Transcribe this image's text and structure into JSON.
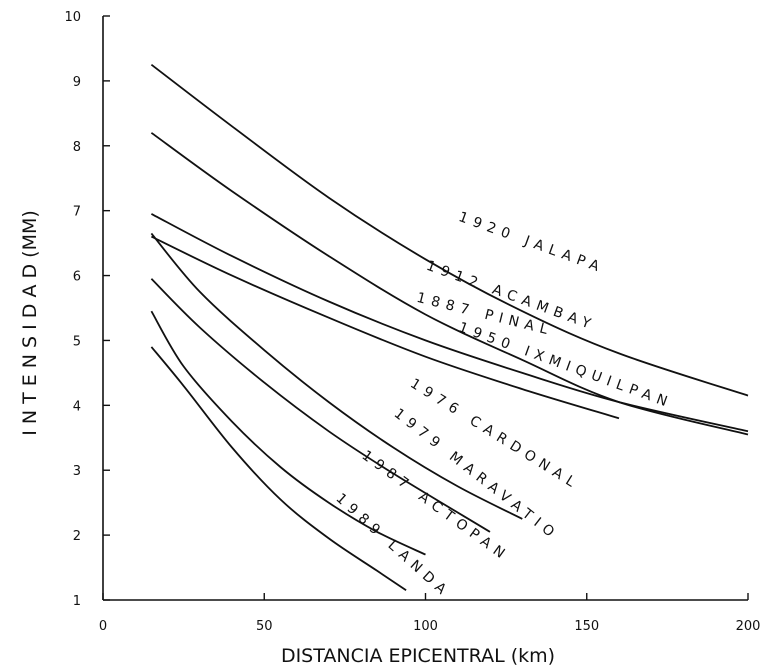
{
  "chart_data": {
    "type": "line",
    "title": "",
    "xlabel": "DISTANCIA EPICENTRAL (km)",
    "ylabel": "I N T E N S I D A D (MM)",
    "xlim": [
      0,
      200
    ],
    "ylim": [
      1,
      10
    ],
    "xticks": [
      0,
      50,
      100,
      150,
      200
    ],
    "yticks": [
      1,
      2,
      3,
      4,
      5,
      6,
      7,
      8,
      9,
      10
    ],
    "grid": false,
    "legend": "none",
    "series": [
      {
        "name": "1920 JALAPA",
        "x": [
          15,
          40,
          70,
          100,
          130,
          160,
          200
        ],
        "y": [
          9.25,
          8.3,
          7.2,
          6.25,
          5.45,
          4.8,
          4.15
        ]
      },
      {
        "name": "1912 ACAMBAY",
        "x": [
          15,
          40,
          70,
          100,
          130,
          160,
          200
        ],
        "y": [
          8.2,
          7.3,
          6.3,
          5.4,
          4.7,
          4.05,
          3.55
        ]
      },
      {
        "name": "1887 PINAL",
        "x": [
          15,
          40,
          70,
          100,
          130,
          160,
          200
        ],
        "y": [
          6.95,
          6.3,
          5.6,
          5.0,
          4.5,
          4.05,
          3.6
        ]
      },
      {
        "name": "1950 IXMIQUILPAN",
        "x": [
          15,
          40,
          70,
          100,
          130,
          160
        ],
        "y": [
          6.6,
          6.0,
          5.35,
          4.75,
          4.25,
          3.8
        ]
      },
      {
        "name": "1976 CARDONAL",
        "x": [
          15,
          30,
          50,
          70,
          90,
          110,
          130
        ],
        "y": [
          6.65,
          5.75,
          4.85,
          4.05,
          3.35,
          2.75,
          2.25
        ]
      },
      {
        "name": "1979 MARAVATIO",
        "x": [
          15,
          30,
          50,
          70,
          90,
          120
        ],
        "y": [
          5.95,
          5.2,
          4.35,
          3.6,
          2.95,
          2.05
        ]
      },
      {
        "name": "1987 ACTOPAN",
        "x": [
          15,
          25,
          40,
          55,
          70,
          85,
          100
        ],
        "y": [
          5.45,
          4.6,
          3.75,
          3.05,
          2.5,
          2.05,
          1.7
        ]
      },
      {
        "name": "1989 LANDA",
        "x": [
          15,
          25,
          40,
          55,
          70,
          85,
          94
        ],
        "y": [
          4.9,
          4.3,
          3.35,
          2.55,
          1.95,
          1.45,
          1.15
        ]
      }
    ],
    "curve_labels": [
      {
        "text": "1920 JALAPA",
        "at_x": 110,
        "at_y": 6.85,
        "angle": 20
      },
      {
        "text": "1912 ACAMBAY",
        "at_x": 100,
        "at_y": 6.1,
        "angle": 20
      },
      {
        "text": "1887 PINAL",
        "at_x": 97,
        "at_y": 5.6,
        "angle": 14
      },
      {
        "text": "1950 IXMIQUILPAN",
        "at_x": 110,
        "at_y": 5.15,
        "angle": 20
      },
      {
        "text": "1976 CARDONAL",
        "at_x": 95,
        "at_y": 4.3,
        "angle": 32
      },
      {
        "text": "1979 MARAVATIO",
        "at_x": 90,
        "at_y": 3.85,
        "angle": 38
      },
      {
        "text": "1987 ACTOPAN",
        "at_x": 80,
        "at_y": 3.2,
        "angle": 36
      },
      {
        "text": "1989 LANDA",
        "at_x": 72,
        "at_y": 2.55,
        "angle": 42
      }
    ]
  }
}
